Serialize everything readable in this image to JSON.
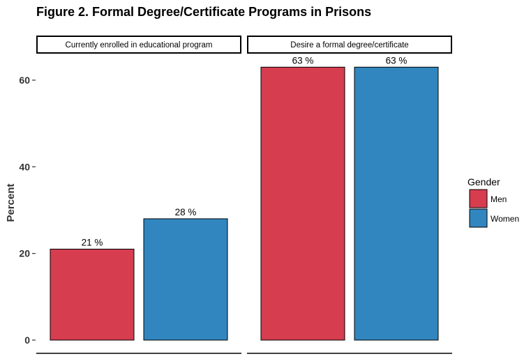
{
  "chart_data": {
    "type": "bar",
    "title": "Figure 2. Formal Degree/Certificate Programs in Prisons",
    "ylabel": "Percent",
    "xlabel": "",
    "ylim": [
      0,
      66
    ],
    "yticks": [
      0,
      20,
      40,
      60
    ],
    "grid": false,
    "legend": {
      "title": "Gender",
      "placement": "right",
      "entries": [
        {
          "name": "Men",
          "color": "#D63D4F"
        },
        {
          "name": "Women",
          "color": "#3186BF"
        }
      ]
    },
    "facets": [
      {
        "label": "Currently enrolled in educational program",
        "series": [
          {
            "name": "Men",
            "value": 21,
            "label": "21 %"
          },
          {
            "name": "Women",
            "value": 28,
            "label": "28 %"
          }
        ]
      },
      {
        "label": "Desire a formal degree/certificate",
        "series": [
          {
            "name": "Men",
            "value": 63,
            "label": "63 %"
          },
          {
            "name": "Women",
            "value": 63,
            "label": "63 %"
          }
        ]
      }
    ]
  }
}
